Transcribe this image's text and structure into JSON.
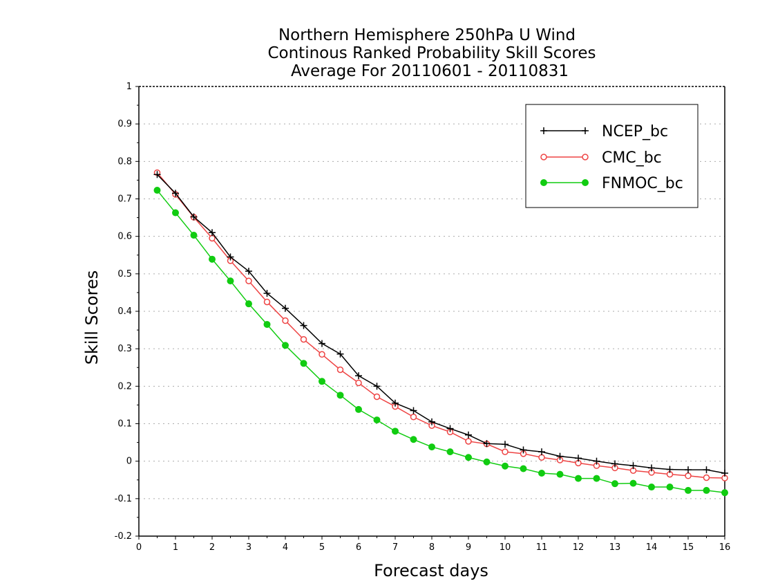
{
  "chart_data": {
    "type": "line",
    "title": [
      "Northern Hemisphere 250hPa U Wind",
      "Continous Ranked Probability Skill Scores",
      "Average For 20110601 - 20110831"
    ],
    "xlabel": "Forecast days",
    "ylabel": "Skill Scores",
    "xlim": [
      0,
      16
    ],
    "ylim": [
      -0.2,
      1
    ],
    "x_ticks": [
      "0",
      "1",
      "2",
      "3",
      "4",
      "5",
      "6",
      "7",
      "8",
      "9",
      "10",
      "11",
      "12",
      "13",
      "14",
      "15",
      "16"
    ],
    "y_ticks": [
      "-0.2",
      "-0.1",
      "0",
      "0.1",
      "0.2",
      "0.3",
      "0.4",
      "0.5",
      "0.6",
      "0.7",
      "0.8",
      "0.9",
      "1"
    ],
    "grid": "horizontal dotted",
    "legend_position": "top-right",
    "x": [
      0.5,
      1,
      1.5,
      2,
      2.5,
      3,
      3.5,
      4,
      4.5,
      5,
      5.5,
      6,
      6.5,
      7,
      7.5,
      8,
      8.5,
      9,
      9.5,
      10,
      10.5,
      11,
      11.5,
      12,
      12.5,
      13,
      13.5,
      14,
      14.5,
      15,
      15.5,
      16
    ],
    "series": [
      {
        "name": "NCEP_bc",
        "color": "#000000",
        "marker": "plus",
        "values": [
          0.765,
          0.715,
          0.652,
          0.61,
          0.545,
          0.507,
          0.448,
          0.408,
          0.362,
          0.314,
          0.286,
          0.228,
          0.2,
          0.155,
          0.135,
          0.105,
          0.087,
          0.07,
          0.047,
          0.045,
          0.03,
          0.025,
          0.013,
          0.008,
          0.0,
          -0.007,
          -0.012,
          -0.018,
          -0.022,
          -0.023,
          -0.023,
          -0.032
        ]
      },
      {
        "name": "CMC_bc",
        "color": "#ee4444",
        "marker": "open-circle",
        "values": [
          0.77,
          0.712,
          0.651,
          0.595,
          0.535,
          0.481,
          0.425,
          0.375,
          0.325,
          0.285,
          0.244,
          0.209,
          0.172,
          0.146,
          0.118,
          0.095,
          0.078,
          0.053,
          0.046,
          0.025,
          0.02,
          0.01,
          0.003,
          -0.005,
          -0.012,
          -0.018,
          -0.025,
          -0.03,
          -0.035,
          -0.039,
          -0.044,
          -0.045
        ]
      },
      {
        "name": "FNMOC_bc",
        "color": "#11cc11",
        "marker": "filled-circle",
        "values": [
          0.723,
          0.663,
          0.603,
          0.539,
          0.481,
          0.42,
          0.365,
          0.309,
          0.261,
          0.213,
          0.176,
          0.138,
          0.11,
          0.08,
          0.058,
          0.038,
          0.025,
          0.01,
          -0.002,
          -0.013,
          -0.02,
          -0.032,
          -0.035,
          -0.046,
          -0.046,
          -0.06,
          -0.059,
          -0.069,
          -0.069,
          -0.078,
          -0.078,
          -0.084
        ]
      }
    ]
  }
}
